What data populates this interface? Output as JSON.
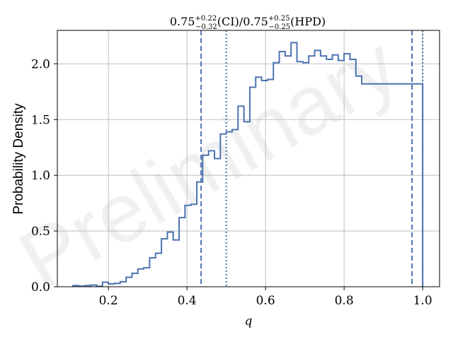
{
  "chart_data": {
    "type": "histogram",
    "title": {
      "ci_value": "0.75",
      "ci_plus": "+0.22",
      "ci_minus": "−0.32",
      "ci_label": "(CI)",
      "separator": "/",
      "hpd_value": "0.75",
      "hpd_plus": "+0.25",
      "hpd_minus": "−0.25",
      "hpd_label": "(HPD)"
    },
    "xlabel": "q",
    "ylabel": "Probability Density",
    "watermark": "Preliminary",
    "xlim": [
      0.07,
      1.043
    ],
    "ylim": [
      0.0,
      2.3
    ],
    "xticks": [
      0.2,
      0.4,
      0.6,
      0.8,
      1.0
    ],
    "xtick_labels": [
      "0.2",
      "0.4",
      "0.6",
      "0.8",
      "1.0"
    ],
    "yticks": [
      0.0,
      0.5,
      1.0,
      1.5,
      2.0
    ],
    "ytick_labels": [
      "0.0",
      "0.5",
      "1.0",
      "1.5",
      "2.0"
    ],
    "grid": true,
    "series_color": "#4c72b0",
    "bin_edges": [
      0.11,
      0.125,
      0.14,
      0.155,
      0.17,
      0.185,
      0.2,
      0.215,
      0.23,
      0.245,
      0.26,
      0.275,
      0.29,
      0.305,
      0.32,
      0.335,
      0.35,
      0.365,
      0.38,
      0.395,
      0.41,
      0.425,
      0.44,
      0.455,
      0.47,
      0.485,
      0.5,
      0.515,
      0.53,
      0.545,
      0.56,
      0.575,
      0.59,
      0.605,
      0.62,
      0.635,
      0.65,
      0.665,
      0.68,
      0.695,
      0.71,
      0.725,
      0.74,
      0.755,
      0.77,
      0.785,
      0.8,
      0.815,
      0.83,
      0.845,
      0.86,
      0.875,
      0.89,
      0.905,
      0.92,
      0.935,
      0.95,
      0.965,
      0.98,
      0.995,
      1.0
    ],
    "bin_values": [
      0.01,
      0.005,
      0.01,
      0.015,
      0.005,
      0.04,
      0.025,
      0.03,
      0.045,
      0.085,
      0.12,
      0.16,
      0.17,
      0.26,
      0.3,
      0.43,
      0.49,
      0.42,
      0.62,
      0.73,
      0.74,
      0.94,
      1.18,
      1.22,
      1.15,
      1.37,
      1.39,
      1.41,
      1.62,
      1.48,
      1.79,
      1.88,
      1.85,
      1.86,
      2.01,
      2.11,
      2.07,
      2.19,
      2.02,
      2.01,
      2.07,
      2.12,
      2.07,
      2.04,
      2.08,
      2.03,
      2.09,
      2.04,
      1.89,
      1.82,
      1.82,
      1.82,
      1.82,
      1.82,
      1.82,
      1.82,
      1.82,
      1.82,
      1.82,
      1.82
    ],
    "dashed_lines": [
      0.436,
      0.973
    ],
    "dotted_lines": [
      0.5,
      1.0
    ]
  }
}
